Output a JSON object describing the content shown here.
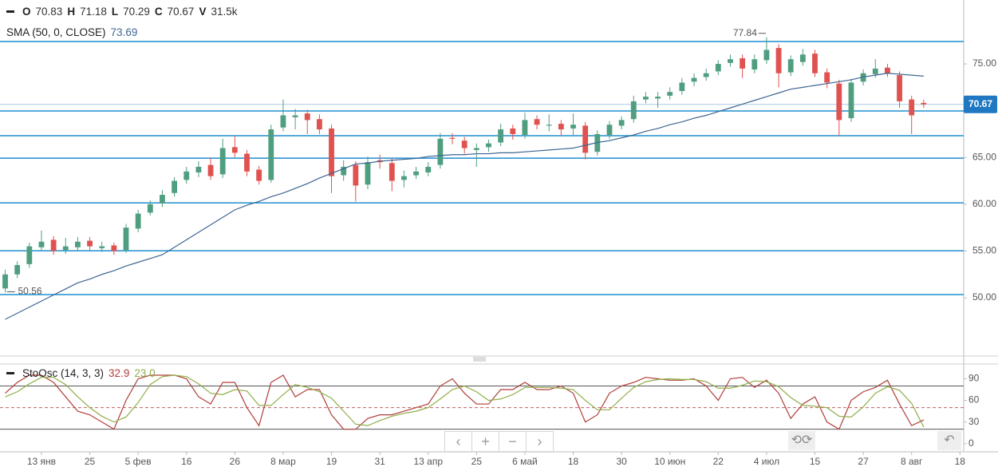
{
  "chart_data": [
    {
      "type": "candlestick",
      "ohlc_labels": [
        "O",
        "H",
        "L",
        "C"
      ],
      "volume_label": "V",
      "volume": "31.5k",
      "xlim": [
        -0.43,
        79.31
      ],
      "xticks": [
        {
          "value": 3,
          "label": "13 янв"
        },
        {
          "value": 7,
          "label": "25"
        },
        {
          "value": 11,
          "label": "5 фев"
        },
        {
          "value": 15,
          "label": "16"
        },
        {
          "value": 19,
          "label": "26"
        },
        {
          "value": 23,
          "label": "8 мар"
        },
        {
          "value": 27,
          "label": "19"
        },
        {
          "value": 31,
          "label": "31"
        },
        {
          "value": 35,
          "label": "13 апр"
        },
        {
          "value": 39,
          "label": "25"
        },
        {
          "value": 43,
          "label": "6 май"
        },
        {
          "value": 47,
          "label": "18"
        },
        {
          "value": 51,
          "label": "30"
        },
        {
          "value": 55,
          "label": "10 июн"
        },
        {
          "value": 59,
          "label": "22"
        },
        {
          "value": 63,
          "label": "4 июл"
        },
        {
          "value": 67,
          "label": "15"
        },
        {
          "value": 71,
          "label": "27"
        },
        {
          "value": 75,
          "label": "8 авг"
        },
        {
          "value": 79,
          "label": "18"
        }
      ],
      "ylim": [
        43.86,
        81.83
      ],
      "yticks": [
        {
          "value": 50,
          "label": "50.00"
        },
        {
          "value": 55,
          "label": "55.00"
        },
        {
          "value": 60,
          "label": "60.00"
        },
        {
          "value": 65,
          "label": "65.00"
        },
        {
          "value": 75,
          "label": "75.00"
        }
      ],
      "up_color": "#4f9e7f",
      "down_color": "#e0524f",
      "open": [
        51.0,
        52.5,
        53.6,
        55.4,
        56.2,
        55.1,
        55.4,
        56.1,
        55.3,
        55.6,
        55.1,
        57.4,
        59.1,
        60.1,
        61.2,
        62.6,
        63.4,
        64.2,
        63.2,
        66.1,
        65.4,
        63.7,
        62.6,
        68.2,
        69.3,
        69.7,
        69.1,
        68.1,
        63.1,
        64.2,
        62.1,
        64.7,
        64.4,
        62.6,
        63.1,
        63.4,
        64.2,
        67.1,
        66.8,
        65.8,
        66.1,
        66.6,
        68.1,
        67.4,
        69.1,
        68.4,
        68.6,
        68.1,
        68.4,
        65.6,
        67.4,
        68.4,
        69.1,
        71.2,
        71.3,
        71.6,
        72.1,
        73.1,
        73.6,
        74.2,
        75.1,
        75.6,
        74.4,
        75.4,
        76.7,
        74.1,
        75.2,
        76.1,
        74.1,
        72.9,
        69.2,
        73.1,
        73.9,
        74.6,
        73.8,
        71.2,
        70.83
      ],
      "high": [
        53.0,
        53.9,
        55.9,
        57.2,
        56.6,
        56.4,
        56.5,
        56.5,
        56.0,
        55.9,
        57.9,
        59.4,
        60.4,
        61.5,
        62.9,
        64.0,
        64.6,
        65.0,
        67.0,
        67.3,
        65.8,
        64.1,
        68.5,
        71.2,
        70.2,
        70.1,
        69.6,
        68.5,
        64.7,
        64.6,
        65.1,
        65.3,
        64.9,
        63.6,
        64.0,
        64.5,
        67.6,
        67.6,
        67.2,
        66.5,
        66.9,
        68.6,
        68.5,
        69.8,
        69.5,
        69.6,
        69.0,
        69.7,
        68.8,
        67.9,
        68.9,
        69.4,
        71.6,
        72.0,
        72.0,
        72.5,
        73.5,
        74.0,
        74.5,
        75.4,
        76.0,
        76.0,
        76.0,
        77.84,
        77.1,
        75.9,
        76.6,
        76.5,
        74.5,
        73.3,
        73.4,
        74.4,
        75.5,
        75.0,
        74.2,
        71.6,
        71.18
      ],
      "low": [
        50.56,
        52.1,
        53.2,
        55.0,
        54.6,
        54.7,
        55.0,
        55.1,
        54.9,
        54.6,
        54.8,
        57.0,
        58.8,
        59.7,
        60.8,
        62.2,
        62.9,
        62.6,
        62.8,
        65.0,
        63.0,
        62.1,
        62.3,
        67.8,
        68.0,
        67.5,
        67.5,
        61.2,
        62.5,
        60.3,
        61.6,
        63.8,
        61.4,
        61.8,
        62.7,
        63.0,
        63.8,
        66.4,
        65.4,
        64.0,
        65.6,
        66.2,
        66.9,
        67.0,
        68.0,
        67.8,
        67.3,
        67.4,
        64.8,
        65.2,
        67.0,
        68.0,
        68.7,
        70.8,
        70.3,
        71.2,
        71.7,
        72.6,
        73.2,
        73.8,
        74.7,
        73.5,
        74.0,
        75.0,
        72.5,
        73.7,
        74.8,
        73.6,
        72.4,
        67.3,
        68.8,
        72.7,
        73.5,
        73.6,
        70.3,
        67.5,
        70.29
      ],
      "close": [
        52.5,
        53.5,
        55.5,
        56,
        55,
        55.5,
        56,
        55.5,
        55.5,
        55,
        57.5,
        59,
        60,
        61,
        62.5,
        63.5,
        64,
        63,
        66,
        65.5,
        63.5,
        62.5,
        68,
        69.5,
        69.5,
        69,
        68,
        63,
        64,
        62,
        64.5,
        64.5,
        62.5,
        63,
        63.5,
        64,
        67,
        67,
        66,
        66,
        66.5,
        68,
        67.5,
        69,
        68.5,
        68.5,
        68,
        68.5,
        65.5,
        67.5,
        68.5,
        69,
        71,
        71.5,
        71.5,
        72,
        73,
        73.5,
        74,
        75,
        75.5,
        74.5,
        75.5,
        76.5,
        74,
        75.5,
        76,
        74,
        73,
        69,
        73,
        74,
        74.5,
        74,
        71,
        69.5,
        70.67
      ],
      "sma": {
        "name": "SMA (50, 0, CLOSE)",
        "color": "#3d6592",
        "values": [
          47.7,
          48.35,
          49.0,
          49.65,
          50.3,
          50.95,
          51.6,
          52.0,
          52.5,
          52.9,
          53.4,
          53.8,
          54.2,
          54.6,
          55.4,
          56.2,
          57.0,
          57.8,
          58.6,
          59.4,
          59.9,
          60.3,
          60.8,
          61.2,
          61.7,
          62.2,
          62.8,
          63.3,
          63.8,
          64.3,
          64.4,
          64.6,
          64.7,
          64.8,
          64.9,
          65.1,
          65.2,
          65.3,
          65.3,
          65.4,
          65.4,
          65.5,
          65.5,
          65.6,
          65.7,
          65.8,
          65.9,
          66.0,
          66.3,
          66.6,
          66.8,
          67.1,
          67.4,
          67.8,
          68.1,
          68.5,
          68.8,
          69.2,
          69.5,
          69.9,
          70.3,
          70.7,
          71.1,
          71.5,
          71.9,
          72.3,
          72.5,
          72.7,
          72.9,
          73.1,
          73.3,
          73.6,
          73.8,
          74.0,
          73.9,
          73.8,
          73.69
        ]
      },
      "levels": [
        77.39,
        69.97,
        67.32,
        64.93,
        60.15,
        55.03,
        50.34
      ],
      "level_color": "#1f8fd1",
      "price_marker_color": "#1f78c1"
    },
    {
      "type": "line",
      "title": "StoOsc (14, 3, 3)",
      "xlim": [
        -0.43,
        79.31
      ],
      "ylim": [
        -11.4,
        110.5
      ],
      "yticks": [
        0,
        30,
        60,
        90
      ],
      "levels": [
        80,
        50,
        20
      ],
      "level_dashed": [
        false,
        true,
        false
      ],
      "series": [
        {
          "color": "#b03e3a",
          "values": [
            70,
            85,
            95,
            95,
            85,
            65,
            45,
            40,
            30,
            20,
            60,
            90,
            95,
            95,
            95,
            90,
            65,
            55,
            85,
            85,
            50,
            25,
            85,
            95,
            65,
            75,
            75,
            40,
            20,
            20,
            35,
            40,
            40,
            45,
            50,
            55,
            80,
            90,
            70,
            55,
            55,
            75,
            75,
            85,
            75,
            75,
            80,
            70,
            30,
            40,
            70,
            80,
            85,
            92,
            90,
            88,
            88,
            90,
            80,
            60,
            90,
            92,
            78,
            88,
            70,
            35,
            55,
            65,
            30,
            20,
            60,
            72,
            78,
            88,
            55,
            25,
            32.9
          ]
        },
        {
          "color": "#8fae48",
          "legend_value": "23.0",
          "values": [
            65,
            72,
            83,
            92,
            92,
            82,
            65,
            50,
            38,
            30,
            37,
            57,
            82,
            93,
            95,
            93,
            83,
            70,
            68,
            75,
            73,
            53,
            53,
            68,
            82,
            78,
            72,
            63,
            45,
            27,
            25,
            32,
            38,
            42,
            45,
            50,
            62,
            75,
            80,
            72,
            60,
            62,
            68,
            78,
            78,
            78,
            77,
            75,
            60,
            47,
            47,
            63,
            78,
            86,
            89,
            90,
            89,
            89,
            86,
            77,
            77,
            81,
            87,
            86,
            79,
            64,
            53,
            52,
            50,
            38,
            37,
            51,
            70,
            79,
            74,
            56,
            23
          ]
        }
      ]
    }
  ]
}
